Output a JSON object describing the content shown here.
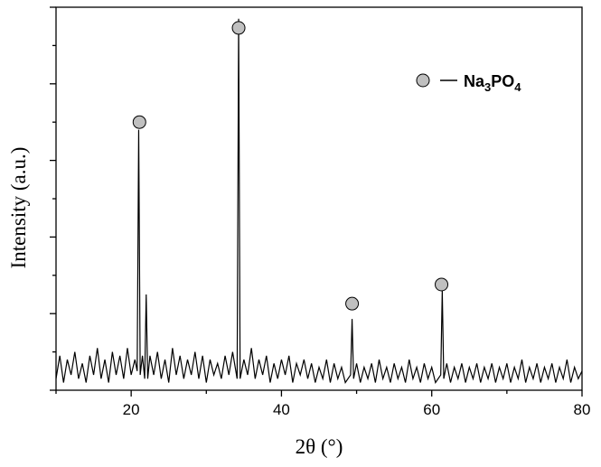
{
  "chart_data": {
    "type": "line",
    "xlabel": "2θ (°)",
    "ylabel": "Intensity (a.u.)",
    "xlim": [
      10,
      80
    ],
    "xticks": [
      20,
      40,
      60,
      80
    ],
    "xminorticks": [
      10,
      30,
      50,
      70
    ],
    "ylim": [
      0,
      100
    ],
    "yticks": [
      0,
      20,
      40,
      60,
      80,
      100
    ],
    "yminorticks": [
      10,
      30,
      50,
      70,
      90
    ],
    "legend": "upper right",
    "series": [
      {
        "type": "line",
        "color": "#000000",
        "x": [
          10,
          10.5,
          11,
          11.5,
          12,
          12.5,
          13,
          13.5,
          14,
          14.5,
          15,
          15.5,
          16,
          16.5,
          17,
          17.5,
          18,
          18.5,
          19,
          19.5,
          20,
          20.5,
          20.8,
          21,
          21.2,
          21.5,
          21.8,
          22,
          22.2,
          22.5,
          23,
          23.5,
          24,
          24.5,
          25,
          25.5,
          26,
          26.5,
          27,
          27.5,
          28,
          28.5,
          29,
          29.5,
          30,
          30.5,
          31,
          31.5,
          32,
          32.5,
          33,
          33.5,
          34.1,
          34.3,
          34.5,
          35,
          35.5,
          36,
          36.5,
          37,
          37.5,
          38,
          38.5,
          39,
          39.5,
          40,
          40.5,
          41,
          41.5,
          42,
          42.5,
          43,
          43.5,
          44,
          44.5,
          45,
          45.5,
          46,
          46.5,
          47,
          47.5,
          48,
          48.5,
          49.2,
          49.4,
          49.6,
          50,
          50.5,
          51,
          51.5,
          52,
          52.5,
          53,
          53.5,
          54,
          54.5,
          55,
          55.5,
          56,
          56.5,
          57,
          57.5,
          58,
          58.5,
          59,
          59.5,
          60,
          60.5,
          61.2,
          61.4,
          61.6,
          62,
          62.5,
          63,
          63.5,
          64,
          64.5,
          65,
          65.5,
          66,
          66.5,
          67,
          67.5,
          68,
          68.5,
          69,
          69.5,
          70,
          70.5,
          71,
          71.5,
          72,
          72.5,
          73,
          73.5,
          74,
          74.5,
          75,
          75.5,
          76,
          76.5,
          77,
          77.5,
          78,
          78.5,
          79,
          79.5,
          80
        ],
        "values": [
          3,
          9,
          2,
          8,
          4,
          10,
          3,
          7,
          2,
          9,
          4,
          11,
          3,
          8,
          2,
          10,
          4,
          9,
          3,
          11,
          4,
          8,
          5,
          68,
          4,
          9,
          3,
          25,
          3,
          9,
          4,
          10,
          3,
          8,
          2,
          11,
          4,
          9,
          3,
          8,
          4,
          10,
          3,
          9,
          2,
          8,
          4,
          7,
          3,
          9,
          4,
          10,
          3,
          97,
          3,
          8,
          4,
          11,
          3,
          8,
          4,
          9,
          2,
          7,
          3,
          8,
          4,
          9,
          2,
          7,
          4,
          8,
          3,
          7,
          2,
          6,
          3,
          8,
          2,
          7,
          3,
          6,
          2,
          4,
          18.6,
          3,
          7,
          2,
          6,
          3,
          7,
          2,
          8,
          3,
          6,
          2,
          7,
          3,
          6,
          2,
          8,
          3,
          6,
          2,
          7,
          3,
          6,
          2,
          4,
          26,
          3,
          7,
          2,
          6,
          3,
          7,
          2,
          6,
          3,
          7,
          2,
          6,
          3,
          7,
          2,
          6,
          3,
          7,
          2,
          6,
          3,
          8,
          2,
          6,
          3,
          7,
          2,
          6,
          3,
          7,
          2,
          6,
          3,
          8,
          2,
          6,
          3,
          5
        ]
      },
      {
        "type": "scatter",
        "name": "Na3PO4",
        "color": "#c0c0c0",
        "x": [
          21.1,
          34.3,
          49.4,
          61.3
        ],
        "values": [
          70,
          94.6,
          22.6,
          27.6
        ]
      }
    ]
  }
}
